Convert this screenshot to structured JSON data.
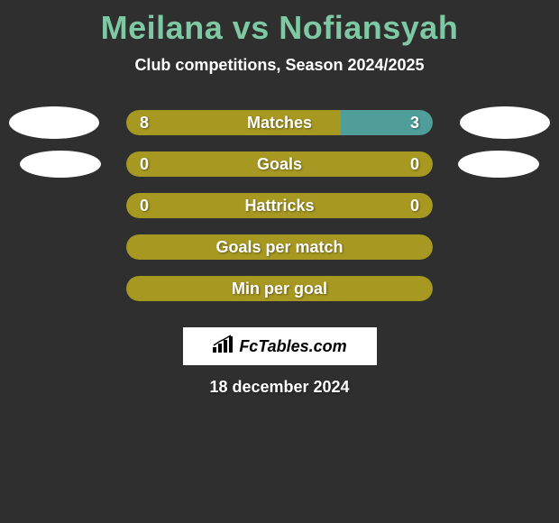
{
  "title": "Meilana vs Nofiansyah",
  "subtitle": "Club competitions, Season 2024/2025",
  "date": "18 december 2024",
  "logo": {
    "text": "FcTables.com"
  },
  "colors": {
    "title": "#7ec9a3",
    "background": "#2f2f2f",
    "text": "#ffffff",
    "bar_olive": "#a79822",
    "bar_teal": "#4f9e99",
    "avatar": "#ffffff"
  },
  "avatars": {
    "row0_left": true,
    "row0_right": true,
    "row1_left": true,
    "row1_right": true
  },
  "stats": [
    {
      "label": "Matches",
      "left_value": "8",
      "right_value": "3",
      "left_pct": 70,
      "right_pct": 30,
      "left_color": "#a79822",
      "right_color": "#4f9e99",
      "has_values": true
    },
    {
      "label": "Goals",
      "left_value": "0",
      "right_value": "0",
      "left_pct": 50,
      "right_pct": 50,
      "left_color": "#a79822",
      "right_color": "#a79822",
      "has_values": true,
      "full_olive": true
    },
    {
      "label": "Hattricks",
      "left_value": "0",
      "right_value": "0",
      "left_pct": 50,
      "right_pct": 50,
      "left_color": "#a79822",
      "right_color": "#a79822",
      "has_values": true,
      "full_olive": true
    },
    {
      "label": "Goals per match",
      "has_values": false,
      "outline_only": true
    },
    {
      "label": "Min per goal",
      "has_values": false,
      "outline_only": true
    }
  ]
}
